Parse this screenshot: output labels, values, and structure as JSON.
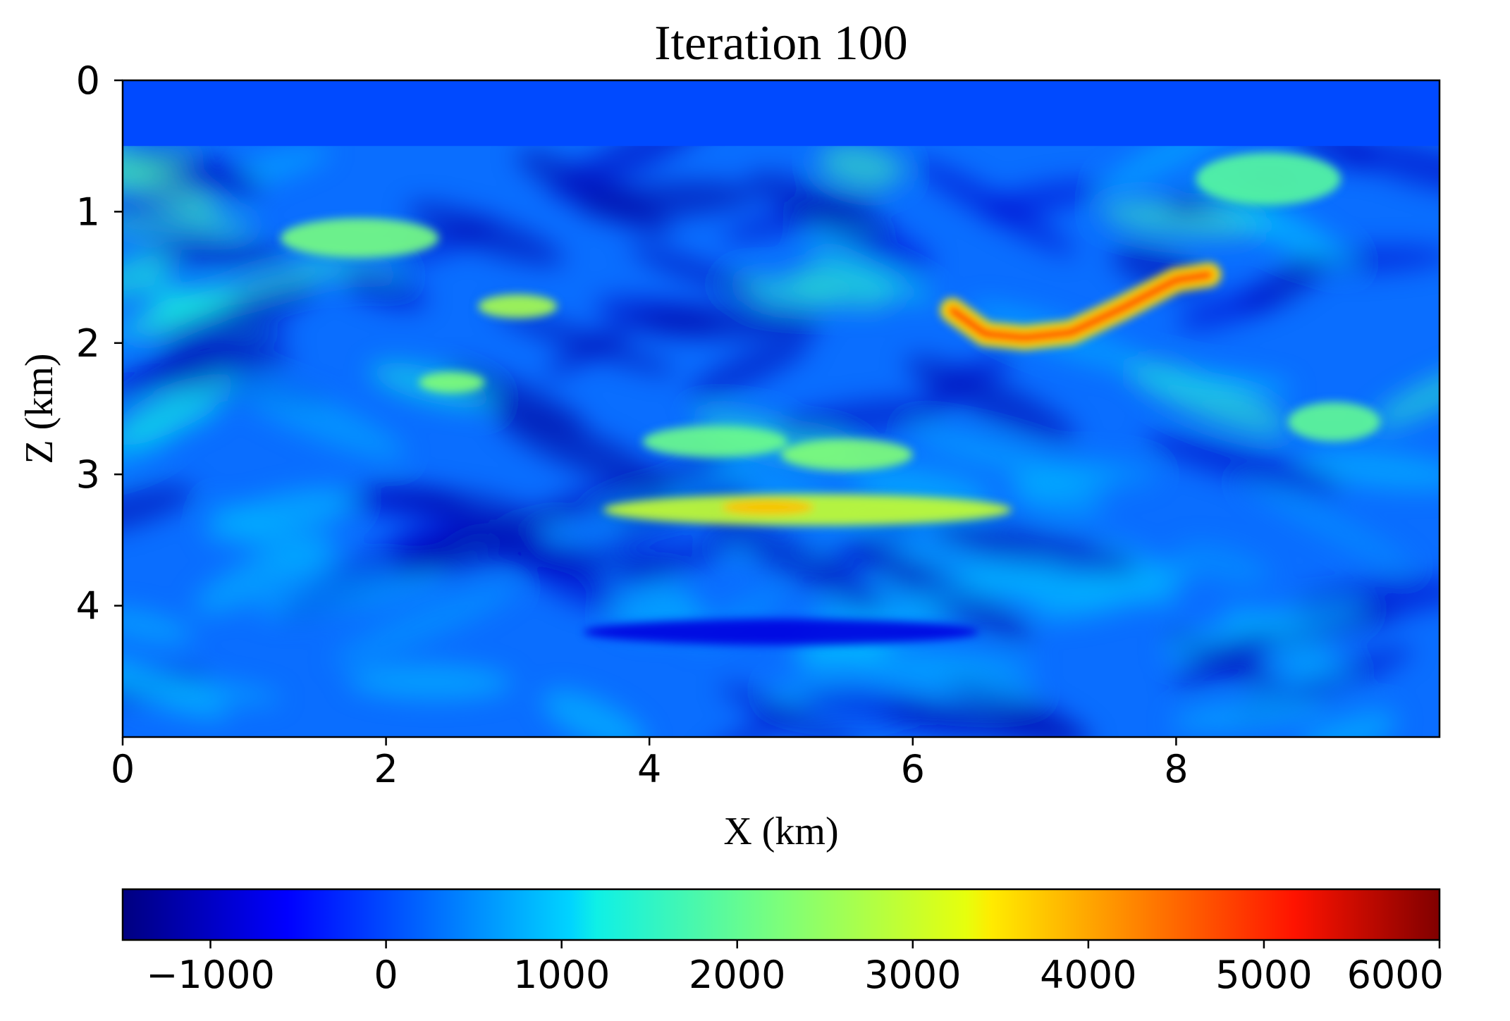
{
  "chart_data": {
    "type": "heatmap",
    "title": "Iteration 100",
    "xlabel": "X (km)",
    "ylabel": "Z (km)",
    "xlim": [
      0,
      10
    ],
    "ylim": [
      5,
      0
    ],
    "x_ticks": [
      0,
      2,
      4,
      6,
      8
    ],
    "x_tick_labels": [
      "0",
      "2",
      "4",
      "6",
      "8"
    ],
    "y_ticks": [
      0,
      1,
      2,
      3,
      4
    ],
    "y_tick_labels": [
      "0",
      "1",
      "2",
      "3",
      "4"
    ],
    "colormap": "jet",
    "colorbar": {
      "orientation": "horizontal",
      "placement": "bottom",
      "range": [
        -1500,
        6000
      ],
      "ticks": [
        -1000,
        0,
        1000,
        2000,
        3000,
        4000,
        5000,
        6000
      ],
      "tick_labels": [
        "−1000",
        "0",
        "1000",
        "2000",
        "3000",
        "4000",
        "5000",
        "6000"
      ]
    },
    "water_layer": {
      "z_bottom": 0.5,
      "value": 0
    },
    "features": [
      {
        "kind": "line",
        "points": [
          [
            6.3,
            1.75
          ],
          [
            6.55,
            1.93
          ],
          [
            6.85,
            1.96
          ],
          [
            7.2,
            1.92
          ],
          [
            7.6,
            1.73
          ],
          [
            8.0,
            1.52
          ],
          [
            8.25,
            1.48
          ]
        ],
        "value": 5000
      },
      {
        "kind": "blob",
        "x": 5.2,
        "z": 3.27,
        "rx": 1.55,
        "rz": 0.12,
        "value": 3000
      },
      {
        "kind": "blob",
        "x": 4.9,
        "z": 3.25,
        "rx": 0.35,
        "rz": 0.06,
        "value": 3800
      },
      {
        "kind": "blob",
        "x": 1.8,
        "z": 1.2,
        "rx": 0.6,
        "rz": 0.15,
        "value": 2200
      },
      {
        "kind": "blob",
        "x": 3.0,
        "z": 1.72,
        "rx": 0.3,
        "rz": 0.09,
        "value": 2700
      },
      {
        "kind": "blob",
        "x": 2.5,
        "z": 2.3,
        "rx": 0.25,
        "rz": 0.08,
        "value": 2300
      },
      {
        "kind": "blob",
        "x": 4.5,
        "z": 2.75,
        "rx": 0.55,
        "rz": 0.12,
        "value": 2100
      },
      {
        "kind": "blob",
        "x": 5.5,
        "z": 2.85,
        "rx": 0.5,
        "rz": 0.12,
        "value": 2300
      },
      {
        "kind": "blob",
        "x": 8.7,
        "z": 0.75,
        "rx": 0.55,
        "rz": 0.2,
        "value": 1900
      },
      {
        "kind": "blob",
        "x": 5.0,
        "z": 4.2,
        "rx": 1.5,
        "rz": 0.1,
        "value": -800
      },
      {
        "kind": "blob",
        "x": 9.2,
        "z": 2.6,
        "rx": 0.35,
        "rz": 0.15,
        "value": 2000
      }
    ]
  }
}
